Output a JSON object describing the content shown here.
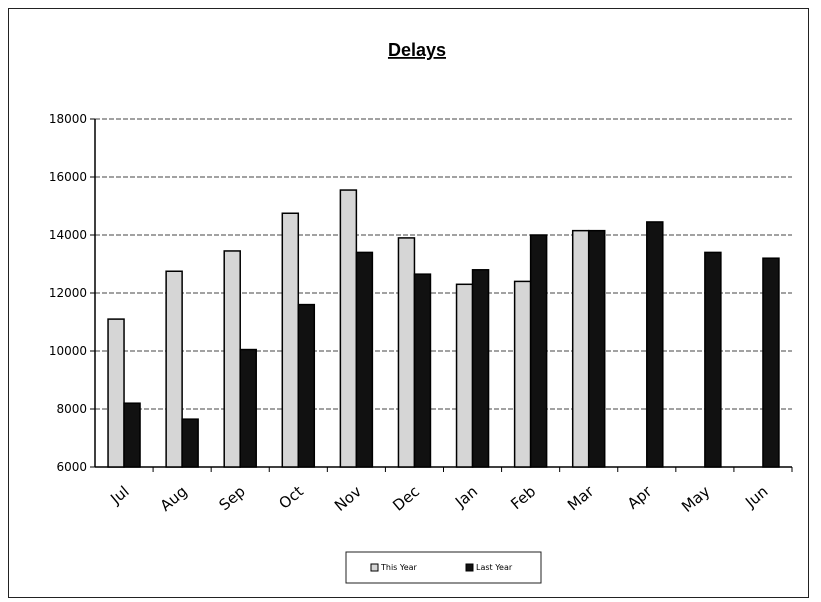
{
  "chart_data": {
    "type": "bar",
    "title": "Delays",
    "xlabel": "",
    "ylabel": "",
    "ylim": [
      6000,
      18000
    ],
    "yticks": [
      6000,
      8000,
      10000,
      12000,
      14000,
      16000,
      18000
    ],
    "grid": true,
    "legend_position": "bottom",
    "categories": [
      "Jul",
      "Aug",
      "Sep",
      "Oct",
      "Nov",
      "Dec",
      "Jan",
      "Feb",
      "Mar",
      "Apr",
      "May",
      "Jun"
    ],
    "series": [
      {
        "name": "This Year",
        "color": "#d6d6d6",
        "values": [
          11100,
          12750,
          13450,
          14750,
          15550,
          13900,
          12300,
          12400,
          14150,
          null,
          null,
          null
        ]
      },
      {
        "name": "Last Year",
        "color": "#111111",
        "values": [
          8200,
          7650,
          10050,
          11600,
          13400,
          12650,
          12800,
          14000,
          14150,
          14450,
          13400,
          13200
        ]
      }
    ]
  }
}
